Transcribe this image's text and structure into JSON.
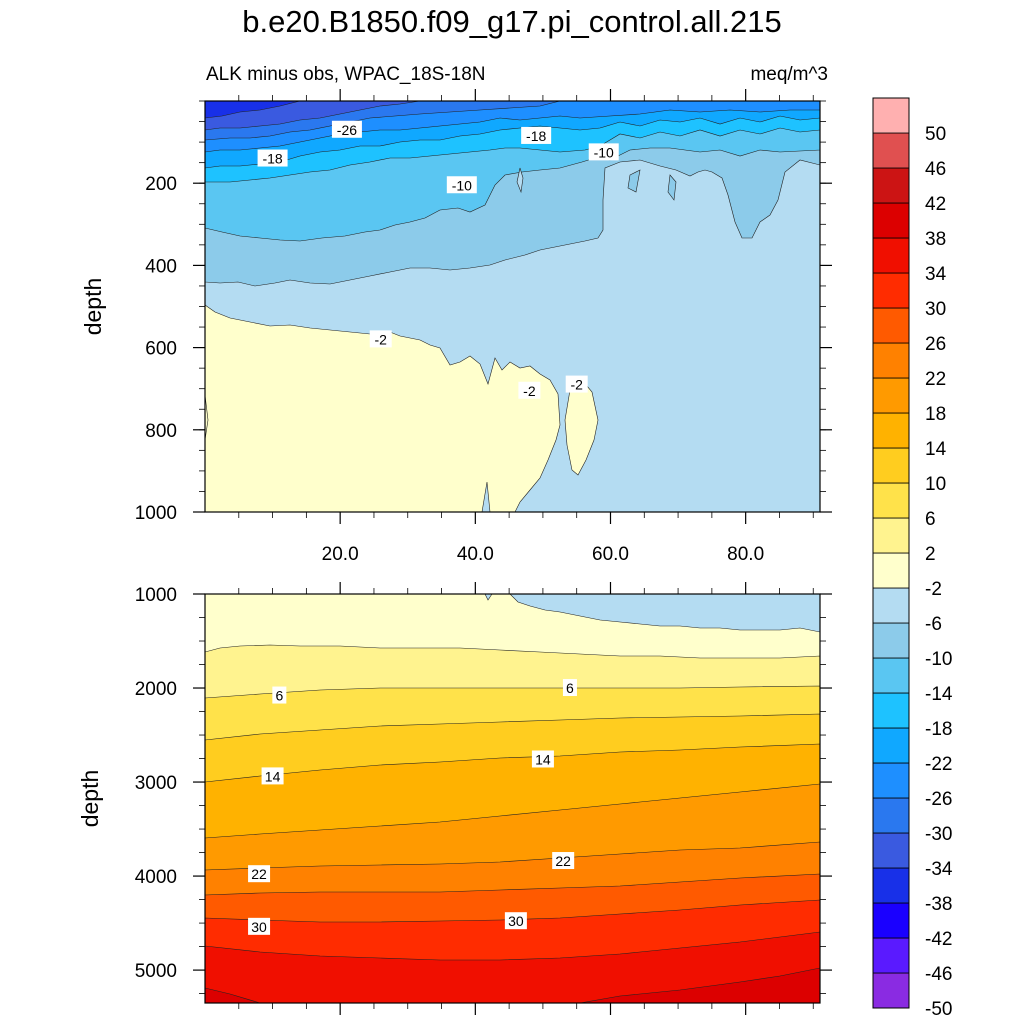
{
  "title": "b.e20.B1850.f09_g17.pi_control.all.215",
  "subtitle_left": "ALK minus obs, WPAC_18S-18N",
  "subtitle_right": "meq/m^3",
  "colors": {
    "bands": [
      "#8a2be2",
      "#5a1aff",
      "#1a00ff",
      "#1830e8",
      "#3a5ae0",
      "#2a78ef",
      "#1e8fff",
      "#10a8ff",
      "#1ec2ff",
      "#5ac6f2",
      "#8ccbea",
      "#b4dcf2",
      "#ffffcc",
      "#fff38f",
      "#ffe24a",
      "#ffcd1f",
      "#ffb200",
      "#ff9a00",
      "#ff8100",
      "#ff5a00",
      "#ff2c00",
      "#f00f00",
      "#dc0000",
      "#cc1414",
      "#e05050",
      "#ffb0b0"
    ]
  },
  "chart_data": [
    {
      "type": "contour",
      "name": "upper",
      "xlabel": "",
      "ylabel": "depth",
      "xlim": [
        0,
        91
      ],
      "ylim": [
        1000,
        0
      ],
      "xticks": [
        20,
        40,
        60,
        80
      ],
      "xtick_labels": [
        "20.0",
        "40.0",
        "60.0",
        "80.0"
      ],
      "yticks": [
        200,
        400,
        600,
        800,
        1000
      ],
      "ytick_labels": [
        "200",
        "400",
        "600",
        "800",
        "1000"
      ],
      "contour_labels": [
        {
          "text": "-26",
          "x": 21,
          "y": 70
        },
        {
          "text": "-18",
          "x": 10,
          "y": 140
        },
        {
          "text": "-18",
          "x": 49,
          "y": 85
        },
        {
          "text": "-10",
          "x": 59,
          "y": 125
        },
        {
          "text": "-10",
          "x": 38,
          "y": 205
        },
        {
          "text": "-2",
          "x": 26,
          "y": 580
        },
        {
          "text": "-2",
          "x": 48,
          "y": 705
        },
        {
          "text": "-2",
          "x": 55,
          "y": 690
        }
      ]
    },
    {
      "type": "contour",
      "name": "lower",
      "xlabel": "",
      "ylabel": "depth",
      "xlim": [
        0,
        91
      ],
      "ylim": [
        5350,
        1000
      ],
      "yticks": [
        1000,
        2000,
        3000,
        4000,
        5000
      ],
      "ytick_labels": [
        "1000",
        "2000",
        "3000",
        "4000",
        "5000"
      ],
      "contour_labels": [
        {
          "text": "6",
          "x": 11,
          "y": 2080
        },
        {
          "text": "6",
          "x": 54,
          "y": 2000
        },
        {
          "text": "14",
          "x": 10,
          "y": 2940
        },
        {
          "text": "14",
          "x": 50,
          "y": 2760
        },
        {
          "text": "22",
          "x": 8,
          "y": 3980
        },
        {
          "text": "22",
          "x": 53,
          "y": 3840
        },
        {
          "text": "30",
          "x": 8,
          "y": 4540
        },
        {
          "text": "30",
          "x": 46,
          "y": 4480
        }
      ]
    }
  ],
  "colorbar": {
    "labels": [
      "50",
      "46",
      "42",
      "38",
      "34",
      "30",
      "26",
      "22",
      "18",
      "14",
      "10",
      "6",
      "2",
      "-2",
      "-6",
      "-10",
      "-14",
      "-18",
      "-22",
      "-26",
      "-30",
      "-34",
      "-38",
      "-42",
      "-46",
      "-50"
    ]
  }
}
